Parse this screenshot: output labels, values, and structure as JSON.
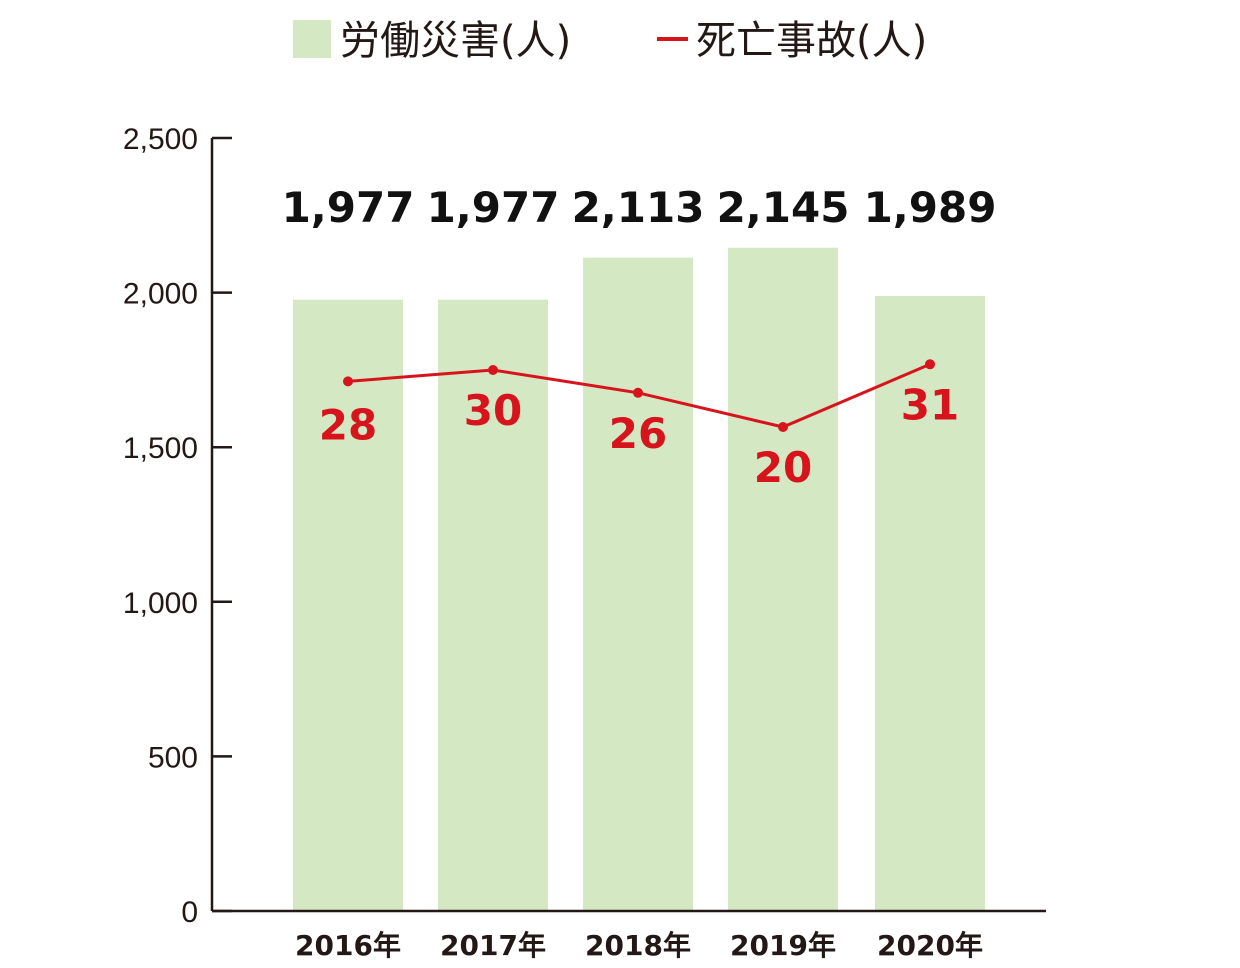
{
  "legend": {
    "bar_label": "労働災害(人)",
    "line_label": "死亡事故(人)"
  },
  "colors": {
    "bar": "#d5e8c4",
    "line": "#d7141c",
    "axis": "#231815",
    "bar_value_text": "#111111"
  },
  "chart_data": {
    "type": "bar",
    "categories": [
      "2016年",
      "2017年",
      "2018年",
      "2019年",
      "2020年"
    ],
    "series": [
      {
        "name": "労働災害(人)",
        "type": "bar",
        "values": [
          1977,
          1977,
          2113,
          2145,
          1989
        ],
        "value_labels": [
          "1,977",
          "1,977",
          "2,113",
          "2,145",
          "1,989"
        ]
      },
      {
        "name": "死亡事故(人)",
        "type": "line",
        "values": [
          28,
          30,
          26,
          20,
          31
        ],
        "value_labels": [
          "28",
          "30",
          "26",
          "20",
          "31"
        ]
      }
    ],
    "ylim": [
      0,
      2500
    ],
    "yticks": [
      0,
      500,
      1000,
      1500,
      2000,
      2500
    ],
    "ytick_labels": [
      "0",
      "500",
      "1,000",
      "1,500",
      "2,000",
      "2,500"
    ],
    "legend_position": "top-center",
    "grid": false
  }
}
